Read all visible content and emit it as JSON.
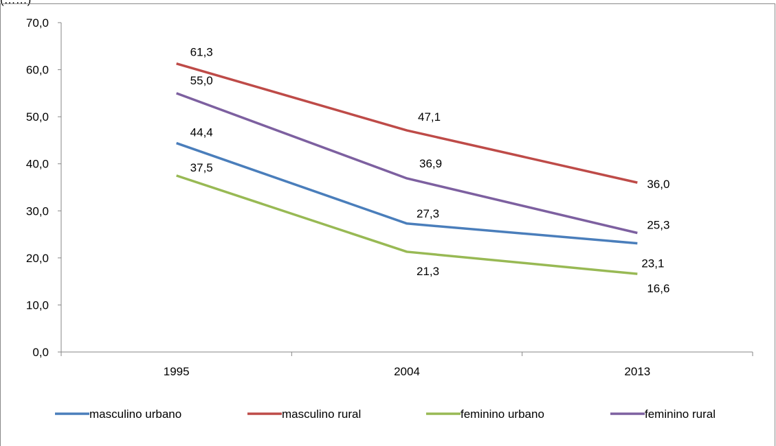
{
  "partial_title": "(……)",
  "chart_data": {
    "type": "line",
    "categories": [
      "1995",
      "2004",
      "2013"
    ],
    "ylim": [
      0,
      70
    ],
    "yticks": [
      0,
      10,
      20,
      30,
      40,
      50,
      60,
      70
    ],
    "ytick_labels": [
      "0,0",
      "10,0",
      "20,0",
      "30,0",
      "40,0",
      "50,0",
      "60,0",
      "70,0"
    ],
    "grid": false,
    "legend_position": "bottom",
    "series": [
      {
        "name": "masculino urbano",
        "color": "#4a7ebb",
        "values": [
          44.4,
          27.3,
          23.1
        ],
        "labels": [
          "44,4",
          "27,3",
          "23,1"
        ]
      },
      {
        "name": "masculino rural",
        "color": "#be4b48",
        "values": [
          61.3,
          47.1,
          36.0
        ],
        "labels": [
          "61,3",
          "47,1",
          "36,0"
        ]
      },
      {
        "name": "feminino urbano",
        "color": "#98b954",
        "values": [
          37.5,
          21.3,
          16.6
        ],
        "labels": [
          "37,5",
          "21,3",
          "16,6"
        ]
      },
      {
        "name": "feminino rural",
        "color": "#7d60a0",
        "values": [
          55.0,
          36.9,
          25.3
        ],
        "labels": [
          "55,0",
          "36,9",
          "25,3"
        ]
      }
    ]
  }
}
